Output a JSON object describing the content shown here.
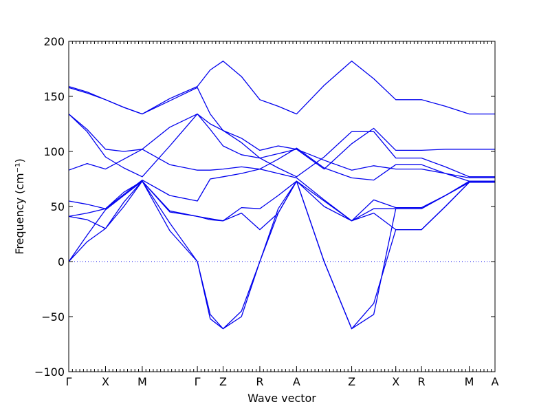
{
  "chart_data": {
    "type": "line",
    "xlabel": "Wave vector",
    "ylabel": "Frequency (cm⁻¹)",
    "ylim": [
      -100,
      200
    ],
    "yticks": [
      "−100",
      "−50",
      "0",
      "50",
      "100",
      "150",
      "200"
    ],
    "ytick_values": [
      -100,
      -50,
      0,
      50,
      100,
      150,
      200
    ],
    "xlim": [
      0,
      11.6
    ],
    "high_symmetry_points": [
      {
        "label": "Γ",
        "x": 0
      },
      {
        "label": "X",
        "x": 1.0
      },
      {
        "label": "M",
        "x": 2.0
      },
      {
        "label": "Γ",
        "x": 3.5
      },
      {
        "label": "Z",
        "x": 4.2
      },
      {
        "label": "R",
        "x": 5.2
      },
      {
        "label": "A",
        "x": 6.2
      },
      {
        "label": "Z",
        "x": 7.7
      },
      {
        "label": "X",
        "x": 8.9
      },
      {
        "label": "R",
        "x": 9.6
      },
      {
        "label": "M",
        "x": 10.9
      },
      {
        "label": "A",
        "x": 11.6
      }
    ],
    "zero_line": true,
    "colors": {
      "bands": "#0000ee",
      "zero_line": "#0000ee"
    },
    "series": [
      {
        "x": [
          0,
          0.5,
          1.0,
          1.5,
          2.0,
          2.75,
          3.5,
          3.85,
          4.2,
          4.7,
          5.2,
          5.7,
          6.2,
          6.95,
          7.7,
          8.3,
          8.9,
          9.25,
          9.6,
          10.25,
          10.9,
          11.25,
          11.6
        ],
        "values": [
          159,
          154,
          147,
          140,
          134,
          148,
          159,
          174,
          182,
          168,
          147,
          141,
          134,
          160,
          182,
          166,
          147,
          147,
          147,
          141,
          134,
          134,
          134
        ]
      },
      {
        "x": [
          0,
          0.5,
          1.0,
          1.5,
          2.0,
          2.75,
          3.5,
          3.85,
          4.2,
          4.7,
          5.2,
          5.7,
          6.2,
          6.95,
          7.7,
          8.3,
          8.9,
          9.25,
          9.6,
          10.25,
          10.9,
          11.25,
          11.6
        ],
        "values": [
          158,
          153,
          147,
          140,
          134,
          146,
          158,
          134,
          119,
          112,
          101,
          105,
          102,
          84,
          107,
          121,
          101,
          101,
          101,
          102,
          102,
          102,
          102
        ]
      },
      {
        "x": [
          0,
          0.5,
          1.0,
          1.5,
          2.0,
          2.75,
          3.5,
          3.85,
          4.2,
          4.7,
          5.2,
          5.7,
          6.2,
          6.95,
          7.7,
          8.3,
          8.9,
          9.25,
          9.6,
          10.25,
          10.9,
          11.25,
          11.6
        ],
        "values": [
          134,
          120,
          102,
          100,
          102,
          122,
          134,
          125,
          119,
          108,
          94,
          85,
          77,
          95,
          118,
          118,
          94,
          94,
          94,
          86,
          77,
          77,
          77
        ]
      },
      {
        "x": [
          0,
          0.5,
          1.0,
          1.5,
          2.0,
          2.75,
          3.5,
          3.85,
          4.2,
          4.7,
          5.2,
          5.7,
          6.2,
          6.95,
          7.7,
          8.3,
          8.9,
          9.25,
          9.6,
          10.25,
          10.9,
          11.25,
          11.6
        ],
        "values": [
          134,
          118,
          95,
          85,
          77,
          105,
          134,
          120,
          105,
          97,
          94,
          98,
          102,
          92,
          83,
          87,
          84,
          84,
          84,
          80,
          76,
          76,
          76
        ]
      },
      {
        "x": [
          0,
          0.5,
          1.0,
          1.5,
          2.0,
          2.75,
          3.5,
          3.85,
          4.2,
          4.7,
          5.2,
          5.7,
          6.2,
          6.95,
          7.7,
          8.3,
          8.9,
          9.25,
          9.6,
          10.25,
          10.9,
          11.25,
          11.6
        ],
        "values": [
          83,
          89,
          84,
          93,
          102,
          88,
          83,
          83,
          84,
          86,
          84,
          93,
          103,
          85,
          76,
          74,
          88,
          88,
          88,
          80,
          73,
          73,
          73
        ]
      },
      {
        "x": [
          0,
          0.5,
          1.0,
          1.5,
          2.0,
          2.75,
          3.5,
          3.85,
          4.2,
          4.7,
          5.2,
          5.7,
          6.2,
          6.95,
          7.7,
          8.3,
          8.9,
          9.25,
          9.6,
          10.25,
          10.9,
          11.25,
          11.6
        ],
        "values": [
          55,
          52,
          48,
          61,
          74,
          60,
          55,
          75,
          77,
          80,
          84,
          80,
          76,
          56,
          37,
          48,
          48,
          48,
          48,
          60,
          72,
          72,
          72
        ]
      },
      {
        "x": [
          0,
          0.5,
          1.0,
          1.5,
          2.0,
          2.75,
          3.5,
          3.85,
          4.2,
          4.7,
          5.2,
          5.7,
          6.2,
          6.95,
          7.7,
          8.3,
          8.9,
          9.25,
          9.6,
          10.25,
          10.9,
          11.25,
          11.6
        ],
        "values": [
          41,
          44,
          48,
          63,
          73,
          46,
          41,
          38,
          37,
          49,
          48,
          60,
          73,
          55,
          37,
          44,
          29,
          29,
          29,
          50,
          72,
          72,
          72
        ]
      },
      {
        "x": [
          0,
          0.5,
          1.0,
          1.5,
          2.0,
          2.75,
          3.5,
          3.85,
          4.2,
          4.7,
          5.2,
          5.7,
          6.2,
          6.95,
          7.7,
          8.3,
          8.9,
          9.25,
          9.6,
          10.25,
          10.9,
          11.25,
          11.6
        ],
        "values": [
          41,
          38,
          30,
          50,
          73,
          45,
          41,
          39,
          37,
          44,
          29,
          44,
          73,
          50,
          37,
          56,
          49,
          49,
          49,
          60,
          73,
          73,
          73
        ]
      },
      {
        "x": [
          0,
          0.5,
          1.0,
          1.5,
          2.0,
          2.75,
          3.5,
          3.85,
          4.2,
          4.7,
          5.2,
          5.7,
          6.2,
          6.95,
          7.7,
          8.3,
          8.9,
          9.25,
          9.6,
          10.25,
          10.9,
          11.25,
          11.6
        ],
        "values": [
          0,
          18,
          30,
          54,
          73,
          28,
          0,
          -48,
          -61,
          -45,
          0,
          44,
          73,
          0,
          -61,
          -38,
          29,
          29,
          29,
          50,
          72,
          72,
          72
        ]
      },
      {
        "x": [
          0,
          0.5,
          1.0,
          1.5,
          2.0,
          2.75,
          3.5,
          3.85,
          4.2,
          4.7,
          5.2,
          5.7,
          6.2,
          6.95,
          7.7,
          8.3,
          8.9,
          9.25,
          9.6,
          10.25,
          10.9,
          11.25,
          11.6
        ],
        "values": [
          0,
          24,
          47,
          60,
          73,
          35,
          0,
          -52,
          -61,
          -50,
          0,
          48,
          73,
          0,
          -61,
          -48,
          48,
          48,
          48,
          60,
          72,
          72,
          72
        ]
      }
    ]
  }
}
